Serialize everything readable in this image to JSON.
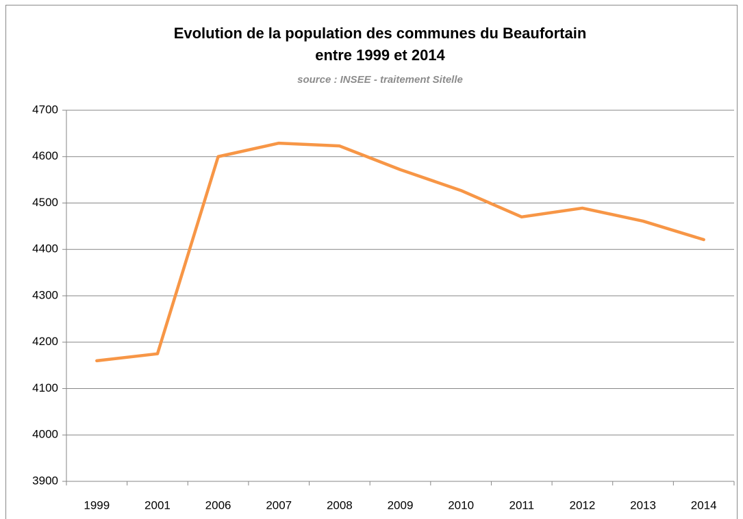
{
  "chart_data": {
    "type": "line",
    "title": [
      "Evolution de la population des communes du Beaufortain",
      "entre 1999 et 2014"
    ],
    "subtitle": "source : INSEE - traitement Sitelle",
    "categories": [
      "1999",
      "2001",
      "2006",
      "2007",
      "2008",
      "2009",
      "2010",
      "2011",
      "2012",
      "2013",
      "2014"
    ],
    "series": [
      {
        "name": "Population",
        "color": "#f79646",
        "values": [
          4160,
          4175,
          4600,
          4629,
          4623,
          4572,
          4527,
          4470,
          4489,
          4461,
          4421
        ]
      }
    ],
    "ylim": [
      3900,
      4700
    ],
    "yticks": [
      3900,
      4000,
      4100,
      4200,
      4300,
      4400,
      4500,
      4600,
      4700
    ],
    "grid": true,
    "legend": false
  }
}
